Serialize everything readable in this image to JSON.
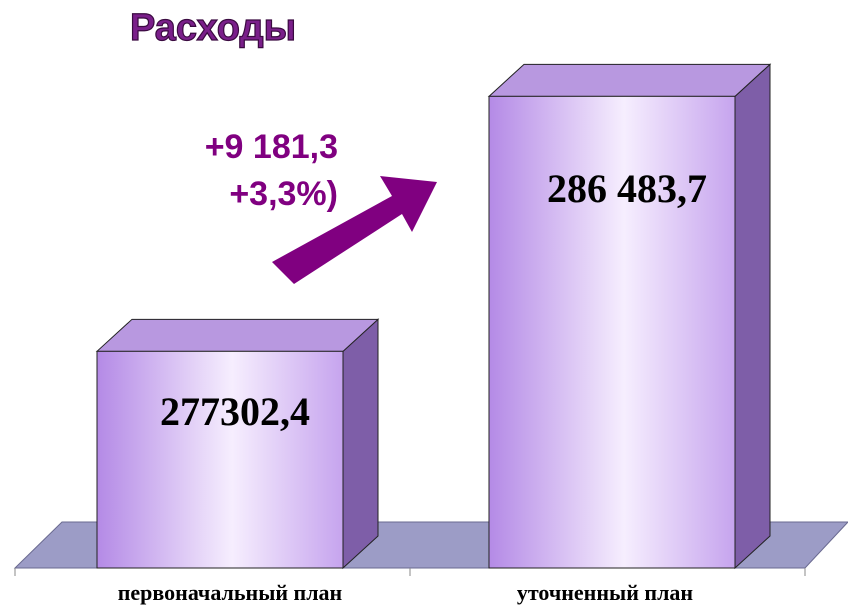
{
  "chart_data": {
    "type": "bar",
    "title": "Расходы",
    "categories": [
      "первоначальный план",
      "уточненный план"
    ],
    "values": [
      277302.4,
      286483.7
    ],
    "value_labels": [
      "277302,4",
      "286 483,7"
    ],
    "annotations": [
      "+9 181,3",
      "+3,3%)"
    ],
    "color": "#c8a8f0",
    "ylim": [
      269500,
      287000
    ]
  }
}
